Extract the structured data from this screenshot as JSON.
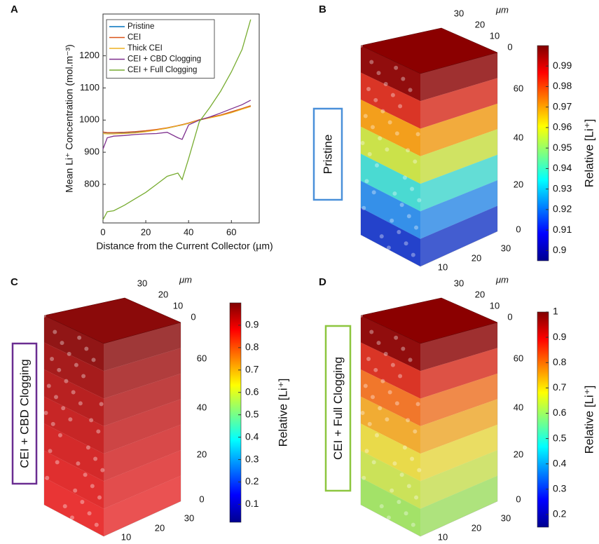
{
  "chart_data": [
    {
      "type": "line",
      "panel": "A",
      "x_label": "Distance from the Current Collector (µm)",
      "y_label": "Mean Li⁺ Concentration (mol.m⁻³)",
      "x": [
        0,
        2,
        5,
        10,
        15,
        20,
        25,
        30,
        35,
        37,
        40,
        45,
        50,
        55,
        60,
        65,
        69
      ],
      "xlim": [
        0,
        73
      ],
      "xticks": [
        0,
        20,
        40,
        60
      ],
      "ylim": [
        680,
        1330
      ],
      "yticks": [
        800,
        900,
        1000,
        1100,
        1200
      ],
      "legend": "upper-left",
      "series": [
        {
          "name": "Pristine",
          "color": "#0072bd",
          "values": [
            962,
            960,
            960,
            961,
            963,
            966,
            970,
            975,
            982,
            985,
            990,
            1000,
            1008,
            1015,
            1025,
            1035,
            1043
          ]
        },
        {
          "name": "CEI",
          "color": "#d95319",
          "values": [
            963,
            961,
            961,
            962,
            964,
            967,
            971,
            976,
            983,
            986,
            991,
            1001,
            1009,
            1016,
            1026,
            1036,
            1045
          ]
        },
        {
          "name": "Thick CEI",
          "color": "#edb120",
          "values": [
            958,
            957,
            957,
            958,
            960,
            964,
            969,
            975,
            982,
            985,
            990,
            1000,
            1007,
            1014,
            1023,
            1034,
            1042
          ]
        },
        {
          "name": "CEI + CBD Clogging",
          "color": "#7e2f8e",
          "values": [
            910,
            945,
            950,
            952,
            955,
            957,
            958,
            962,
            945,
            940,
            985,
            1000,
            1010,
            1022,
            1035,
            1048,
            1062
          ]
        },
        {
          "name": "CEI + Full Clogging",
          "color": "#77ac30",
          "values": [
            690,
            715,
            718,
            735,
            755,
            775,
            800,
            825,
            835,
            815,
            880,
            995,
            1040,
            1090,
            1150,
            1220,
            1313
          ]
        }
      ]
    },
    {
      "type": "volume",
      "panel": "B",
      "label": "Pristine",
      "label_color": "#4a90d9",
      "unit": "μm",
      "top_ticks": [
        30,
        20,
        10,
        0
      ],
      "z_ticks": [
        60,
        40,
        20,
        0
      ],
      "bottom_ticks": [
        10,
        20,
        30
      ],
      "layer_colors": [
        "#8b0000",
        "#d82a1a",
        "#f29a10",
        "#c8e040",
        "#40d8d0",
        "#2a8ae8",
        "#1838c8"
      ],
      "colorbar_label": "Relative [Li⁺]",
      "clim": [
        0.895,
        1.0
      ],
      "cticks": [
        0.9,
        0.91,
        0.92,
        0.93,
        0.94,
        0.95,
        0.96,
        0.97,
        0.98,
        0.99
      ]
    },
    {
      "type": "volume",
      "panel": "C",
      "label": "CEI + CBD Clogging",
      "label_color": "#6a2d91",
      "unit": "μm",
      "top_ticks": [
        30,
        20,
        10,
        0
      ],
      "z_ticks": [
        60,
        40,
        20,
        0
      ],
      "bottom_ticks": [
        10,
        20,
        30
      ],
      "layer_colors": [
        "#8b0a0a",
        "#a11010",
        "#b41515",
        "#c41a1a",
        "#d21f1f",
        "#de2424",
        "#e82a2a"
      ],
      "colorbar_label": "Relative [Li⁺]",
      "clim": [
        0.02,
        1.0
      ],
      "cticks": [
        0.1,
        0.2,
        0.3,
        0.4,
        0.5,
        0.6,
        0.7,
        0.8,
        0.9
      ]
    },
    {
      "type": "volume",
      "panel": "D",
      "label": "CEI + Full Clogging",
      "label_color": "#8dc63f",
      "unit": "μm",
      "top_ticks": [
        30,
        20,
        10,
        0
      ],
      "z_ticks": [
        60,
        40,
        20,
        0
      ],
      "bottom_ticks": [
        10,
        20,
        30
      ],
      "layer_colors": [
        "#8b0000",
        "#d82a1a",
        "#f07020",
        "#f0a828",
        "#e8d840",
        "#c8e050",
        "#9ee060"
      ],
      "colorbar_label": "Relative [Li⁺]",
      "clim": [
        0.15,
        1.0
      ],
      "cticks": [
        0.2,
        0.3,
        0.4,
        0.5,
        0.6,
        0.7,
        0.8,
        0.9,
        1
      ]
    }
  ]
}
